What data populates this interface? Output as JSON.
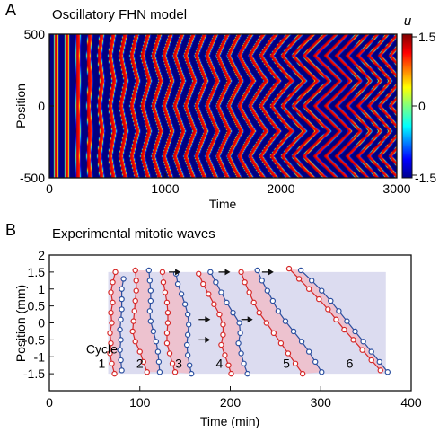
{
  "panel_a": {
    "letter": "A",
    "title": "Oscillatory FHN model"
  },
  "panel_b": {
    "letter": "B",
    "title": "Experimental mitotic waves",
    "cycle_word": "Cycle"
  },
  "colors": {
    "red": "#d62828",
    "blue": "#2b4fa0",
    "shade": "#dcdcf0",
    "frame": "#111111"
  },
  "chart_data": [
    {
      "type": "heatmap",
      "title": "Oscillatory FHN model",
      "xlabel": "Time",
      "ylabel": "Position",
      "xlim": [
        0,
        3000
      ],
      "ylim": [
        -500,
        500
      ],
      "xticks": [
        "0",
        "1000",
        "2000",
        "3000"
      ],
      "yticks": [
        "-500",
        "0",
        "500"
      ],
      "colorbar": {
        "label": "u",
        "range": [
          -1.5,
          1.5
        ],
        "ticks": [
          "1.5",
          "0",
          "-1.5"
        ],
        "colormap": "jet"
      },
      "waves": {
        "period": 93,
        "first_peak_time": 40,
        "pacemaker_positions": [
          -350,
          0,
          350
        ],
        "pacemaker_lead_start": 0,
        "pacemaker_lead_end": 190
      }
    },
    {
      "type": "scatter",
      "title": "Experimental mitotic waves",
      "xlabel": "Time (min)",
      "ylabel": "Position (mm)",
      "xlim": [
        0,
        400
      ],
      "ylim": [
        -2,
        2
      ],
      "xticks": [
        "0",
        "100",
        "200",
        "300",
        "400"
      ],
      "yticks": [
        "2",
        "1.5",
        "1",
        "0.5",
        "0",
        "-0.5",
        "-1",
        "-1.5"
      ],
      "shaded_region": {
        "x": [
          65,
          372
        ],
        "y": [
          -1.5,
          1.5
        ]
      },
      "cycles": [
        {
          "label": "1",
          "label_pos": [
            58,
            -1.32
          ],
          "red": [
            [
              73,
              1.5
            ],
            [
              70,
              1.2
            ],
            [
              68,
              0.9
            ],
            [
              70,
              0.6
            ],
            [
              68,
              0.3
            ],
            [
              69,
              0
            ],
            [
              67,
              -0.3
            ],
            [
              68,
              -0.6
            ],
            [
              67,
              -0.9
            ],
            [
              69,
              -1.2
            ],
            [
              72,
              -1.5
            ]
          ],
          "blue": [
            [
              82,
              1.3
            ],
            [
              80,
              1.0
            ],
            [
              80,
              0.7
            ],
            [
              80,
              0.4
            ],
            [
              79,
              0.1
            ],
            [
              78,
              -0.2
            ],
            [
              79,
              -0.5
            ],
            [
              78,
              -0.8
            ],
            [
              79,
              -1.1
            ],
            [
              80,
              -1.4
            ]
          ]
        },
        {
          "label": "2",
          "label_pos": [
            100,
            -1.32
          ],
          "red": [
            [
              95,
              1.55
            ],
            [
              96,
              1.25
            ],
            [
              96,
              0.95
            ],
            [
              95,
              0.65
            ],
            [
              94,
              0.35
            ],
            [
              93,
              0.05
            ],
            [
              92,
              -0.25
            ],
            [
              95,
              -0.55
            ],
            [
              100,
              -0.85
            ],
            [
              104,
              -1.15
            ],
            [
              108,
              -1.45
            ]
          ],
          "blue": [
            [
              110,
              1.55
            ],
            [
              111,
              1.25
            ],
            [
              112,
              0.95
            ],
            [
              112,
              0.65
            ],
            [
              111,
              0.35
            ],
            [
              112,
              0.05
            ],
            [
              115,
              -0.25
            ],
            [
              118,
              -0.55
            ],
            [
              120,
              -0.85
            ],
            [
              121,
              -1.15
            ],
            [
              122,
              -1.45
            ]
          ]
        },
        {
          "label": "3",
          "label_pos": [
            143,
            -1.32
          ],
          "red": [
            [
              125,
              1.5
            ],
            [
              126,
              1.2
            ],
            [
              128,
              0.9
            ],
            [
              130,
              0.6
            ],
            [
              131,
              0.3
            ],
            [
              131,
              0
            ],
            [
              130,
              -0.3
            ],
            [
              130,
              -0.6
            ],
            [
              133,
              -0.9
            ],
            [
              136,
              -1.2
            ],
            [
              139,
              -1.45
            ]
          ],
          "blue": [
            [
              140,
              1.45
            ],
            [
              142,
              1.15
            ],
            [
              146,
              0.85
            ],
            [
              150,
              0.55
            ],
            [
              153,
              0.25
            ],
            [
              154,
              -0.05
            ],
            [
              153,
              -0.35
            ],
            [
              152,
              -0.65
            ],
            [
              153,
              -0.95
            ],
            [
              155,
              -1.25
            ],
            [
              157,
              -1.5
            ]
          ]
        },
        {
          "label": "4",
          "label_pos": [
            188,
            -1.32
          ],
          "red": [
            [
              165,
              1.45
            ],
            [
              170,
              1.15
            ],
            [
              176,
              0.85
            ],
            [
              182,
              0.55
            ],
            [
              188,
              0.25
            ],
            [
              192,
              -0.05
            ],
            [
              192,
              -0.35
            ],
            [
              190,
              -0.65
            ],
            [
              194,
              -0.95
            ],
            [
              198,
              -1.25
            ],
            [
              201,
              -1.5
            ]
          ],
          "blue": [
            [
              178,
              1.5
            ],
            [
              184,
              1.2
            ],
            [
              190,
              0.9
            ],
            [
              196,
              0.6
            ],
            [
              203,
              0.3
            ],
            [
              210,
              0
            ],
            [
              211,
              -0.3
            ],
            [
              209,
              -0.6
            ],
            [
              212,
              -0.9
            ],
            [
              215,
              -1.2
            ],
            [
              219,
              -1.5
            ]
          ]
        },
        {
          "label": "5",
          "label_pos": [
            262,
            -1.32
          ],
          "red": [
            [
              212,
              1.5
            ],
            [
              216,
              1.2
            ],
            [
              221,
              0.9
            ],
            [
              226,
              0.6
            ],
            [
              232,
              0.3
            ],
            [
              240,
              0
            ],
            [
              248,
              -0.3
            ],
            [
              256,
              -0.6
            ],
            [
              264,
              -0.9
            ],
            [
              272,
              -1.2
            ],
            [
              280,
              -1.5
            ]
          ],
          "blue": [
            [
              230,
              1.55
            ],
            [
              235,
              1.25
            ],
            [
              241,
              0.95
            ],
            [
              247,
              0.65
            ],
            [
              253,
              0.35
            ],
            [
              261,
              0.05
            ],
            [
              270,
              -0.25
            ],
            [
              279,
              -0.55
            ],
            [
              287,
              -0.85
            ],
            [
              294,
              -1.15
            ],
            [
              301,
              -1.45
            ]
          ]
        },
        {
          "label": "6",
          "label_pos": [
            332,
            -1.32
          ],
          "red": [
            [
              265,
              1.6
            ],
            [
              276,
              1.3
            ],
            [
              287,
              1.0
            ],
            [
              298,
              0.7
            ],
            [
              308,
              0.4
            ],
            [
              317,
              0.1
            ],
            [
              326,
              -0.2
            ],
            [
              336,
              -0.5
            ],
            [
              346,
              -0.8
            ],
            [
              356,
              -1.1
            ],
            [
              366,
              -1.4
            ]
          ],
          "blue": [
            [
              278,
              1.55
            ],
            [
              290,
              1.25
            ],
            [
              301,
              0.95
            ],
            [
              311,
              0.65
            ],
            [
              320,
              0.35
            ],
            [
              329,
              0.05
            ],
            [
              338,
              -0.25
            ],
            [
              347,
              -0.55
            ],
            [
              356,
              -0.85
            ],
            [
              365,
              -1.15
            ],
            [
              374,
              -1.45
            ]
          ]
        }
      ],
      "arrows": [
        [
          145,
          1.5
        ],
        [
          200,
          1.5
        ],
        [
          248,
          1.5
        ],
        [
          178,
          0.1
        ],
        [
          225,
          0.1
        ],
        [
          178,
          -0.5
        ]
      ]
    }
  ]
}
